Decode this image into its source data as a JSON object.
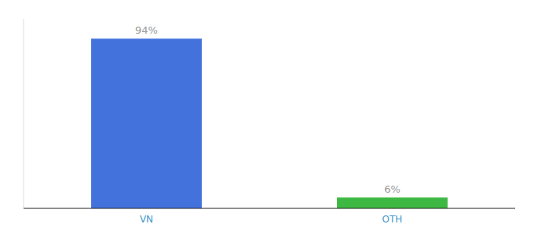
{
  "chart_data": {
    "type": "bar",
    "categories": [
      "VN",
      "OTH"
    ],
    "values": [
      94,
      6
    ],
    "colors": [
      "#4472dd",
      "#3cb843"
    ],
    "value_labels": [
      "94%",
      "6%"
    ],
    "data_labels": true,
    "ylim": [
      0,
      105
    ],
    "tick_labels": "x"
  }
}
